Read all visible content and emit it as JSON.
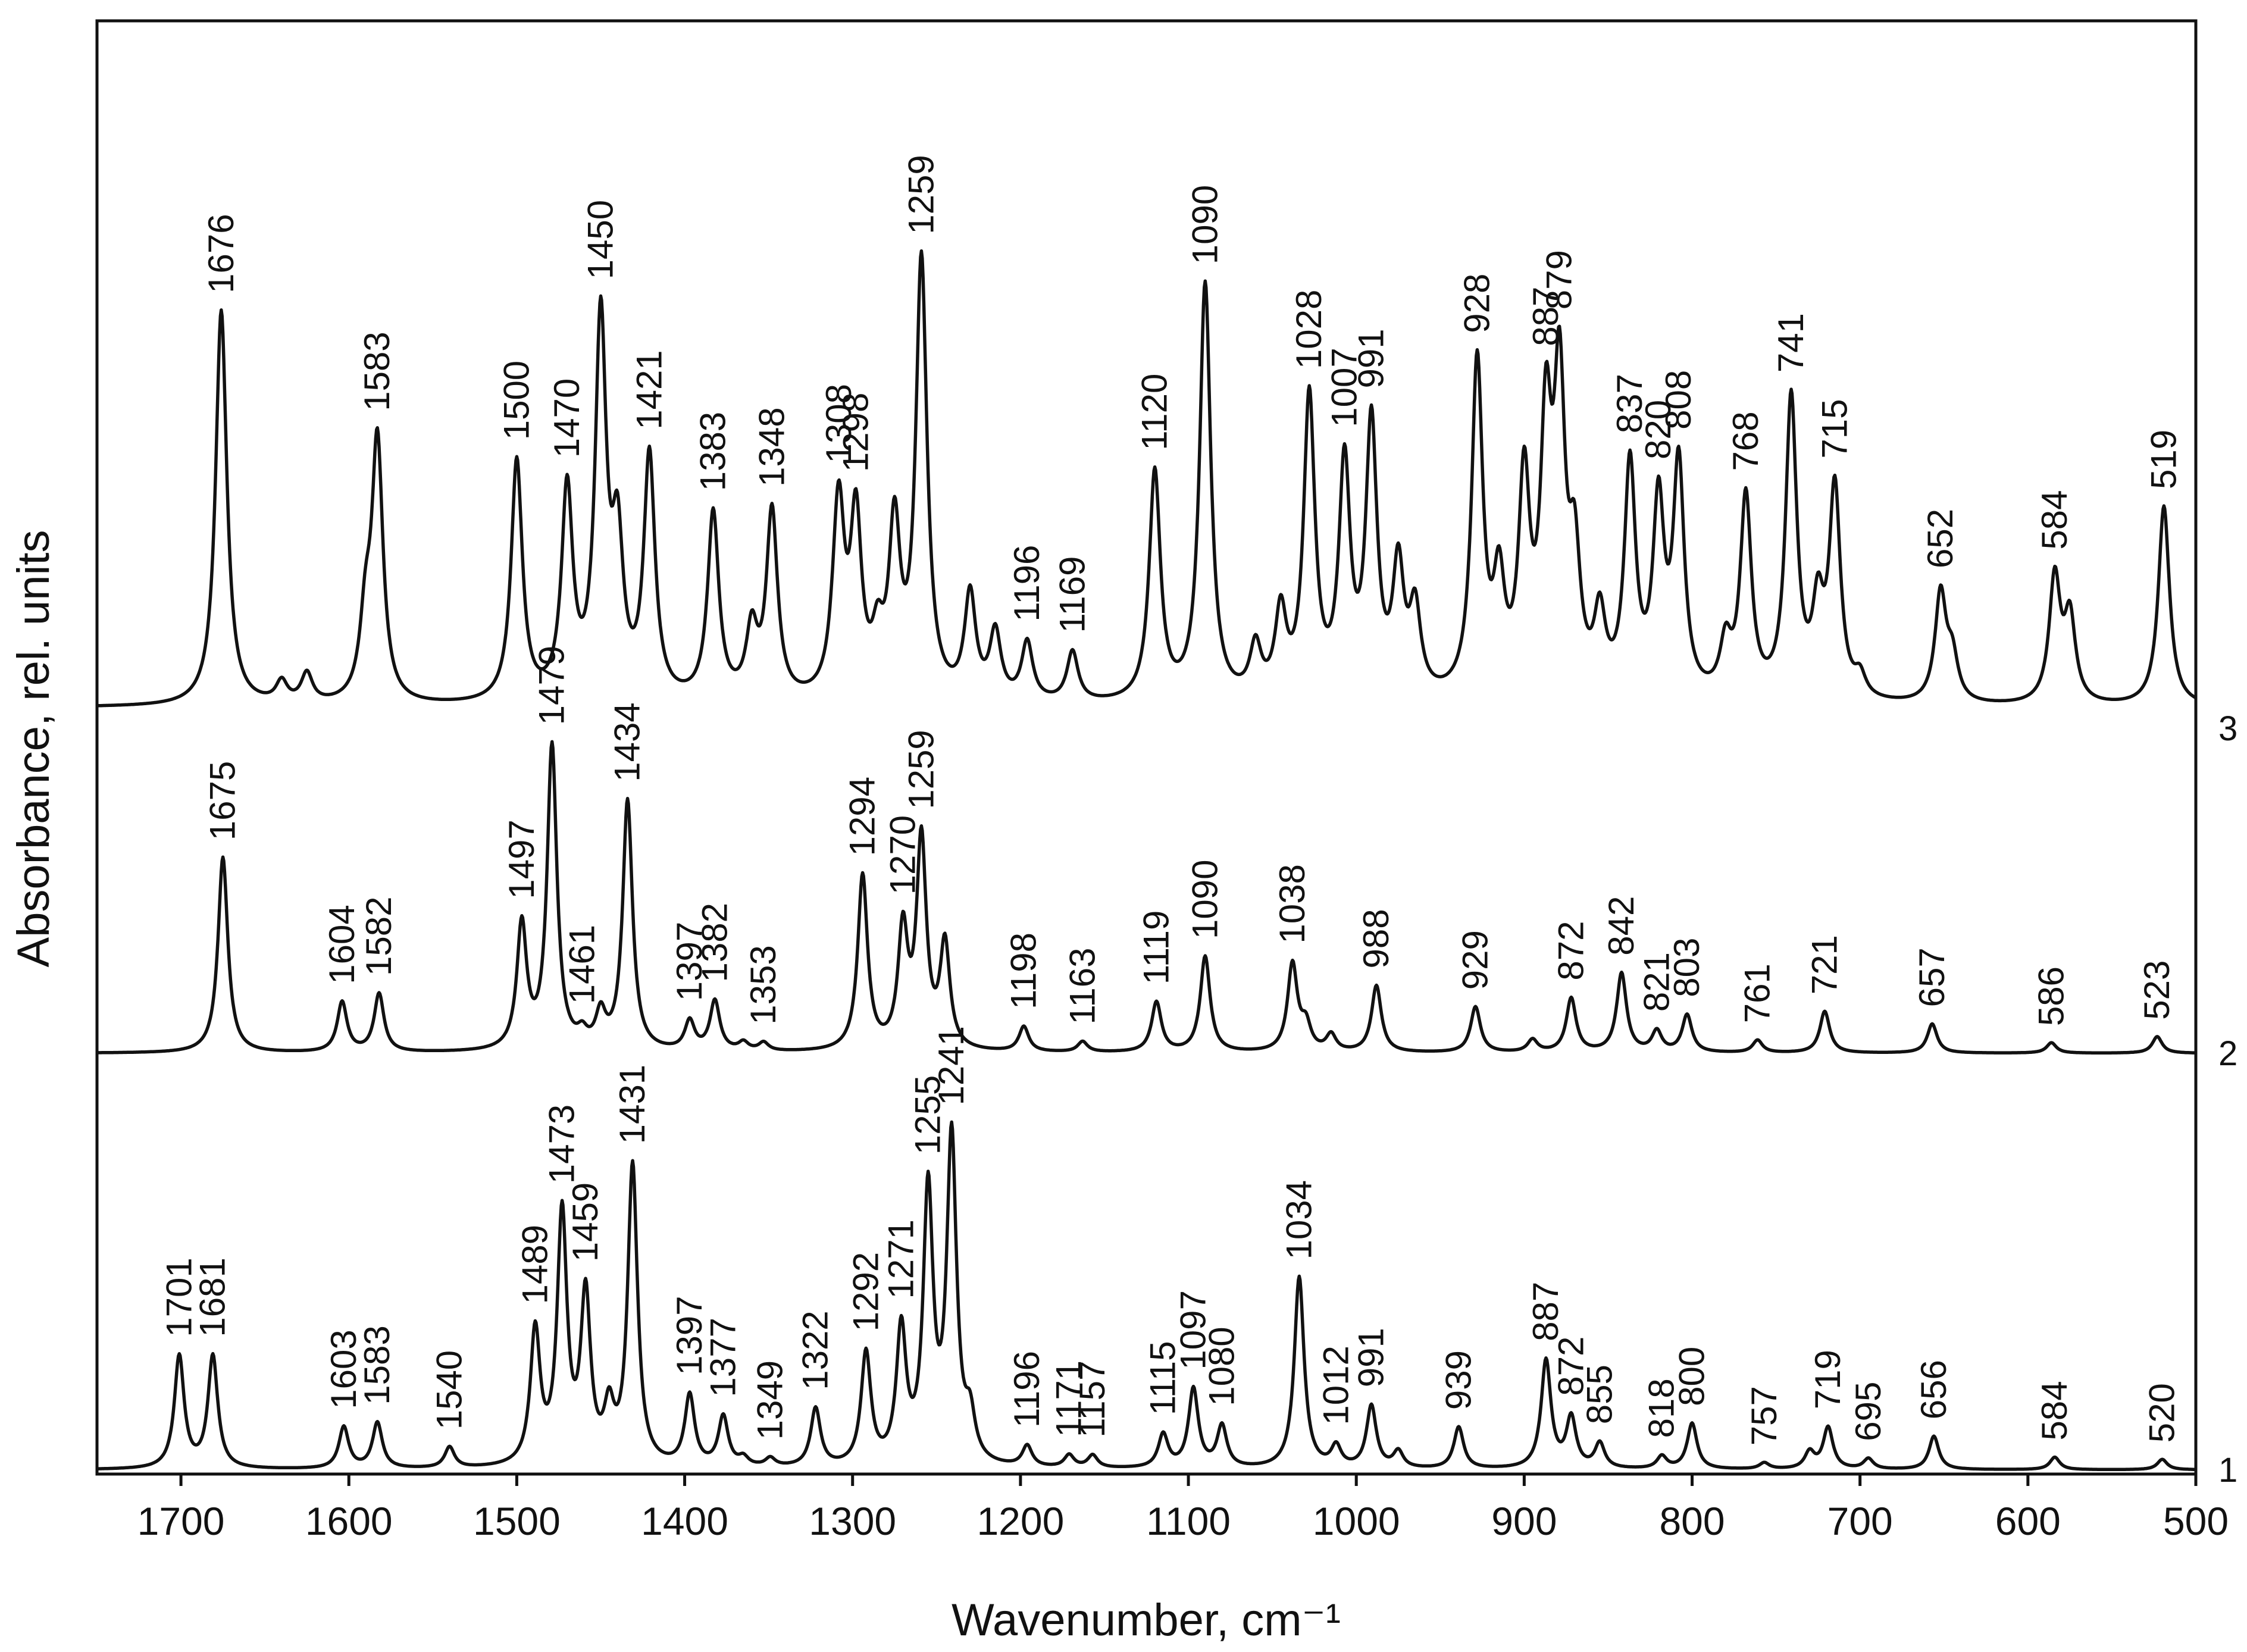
{
  "chart_data": {
    "type": "line",
    "title": "",
    "xlabel": "Wavenumber, cm⁻¹",
    "ylabel": "Absorbance, rel. units",
    "xlim": [
      1750,
      500
    ],
    "x_reversed": true,
    "y_ticks_shown": false,
    "grid": false,
    "x_ticks": [
      1700,
      1600,
      1500,
      1400,
      1300,
      1200,
      1100,
      1000,
      900,
      800,
      700,
      600,
      500
    ],
    "x_tick_labels": [
      "1700",
      "1600",
      "1500",
      "1400",
      "1300",
      "1200",
      "1100",
      "1000",
      "900",
      "800",
      "700",
      "600",
      "500"
    ],
    "series": [
      {
        "name": "3",
        "baseline_offset": 1.78,
        "baseline": 0.05,
        "width": 4,
        "shoulders": [
          {
            "x": 1590,
            "h": 0.18
          },
          {
            "x": 1640,
            "h": 0.05
          },
          {
            "x": 1625,
            "h": 0.07
          },
          {
            "x": 1285,
            "h": 0.12
          },
          {
            "x": 1275,
            "h": 0.4
          },
          {
            "x": 1230,
            "h": 0.25
          },
          {
            "x": 1215,
            "h": 0.16
          },
          {
            "x": 1440,
            "h": 0.35
          },
          {
            "x": 1360,
            "h": 0.16
          },
          {
            "x": 1060,
            "h": 0.12
          },
          {
            "x": 1045,
            "h": 0.2
          },
          {
            "x": 975,
            "h": 0.3
          },
          {
            "x": 965,
            "h": 0.2
          },
          {
            "x": 900,
            "h": 0.5
          },
          {
            "x": 915,
            "h": 0.25
          },
          {
            "x": 870,
            "h": 0.3
          },
          {
            "x": 855,
            "h": 0.18
          },
          {
            "x": 780,
            "h": 0.12
          },
          {
            "x": 725,
            "h": 0.2
          },
          {
            "x": 700,
            "h": 0.05
          },
          {
            "x": 645,
            "h": 0.1
          },
          {
            "x": 575,
            "h": 0.2
          },
          {
            "x": 1310,
            "h": 0.1
          }
        ],
        "peaks": [
          {
            "x": 1676,
            "h": 0.95,
            "label": "1676"
          },
          {
            "x": 1583,
            "h": 0.62,
            "label": "1583"
          },
          {
            "x": 1500,
            "h": 0.58,
            "label": "1500"
          },
          {
            "x": 1470,
            "h": 0.5,
            "label": "1470"
          },
          {
            "x": 1450,
            "h": 0.9,
            "label": "1450"
          },
          {
            "x": 1421,
            "h": 0.58,
            "label": "1421"
          },
          {
            "x": 1383,
            "h": 0.45,
            "label": "1383"
          },
          {
            "x": 1348,
            "h": 0.45,
            "label": "1348"
          },
          {
            "x": 1308,
            "h": 0.38,
            "label": "1308"
          },
          {
            "x": 1298,
            "h": 0.42,
            "label": "1298"
          },
          {
            "x": 1259,
            "h": 1.05,
            "label": "1259"
          },
          {
            "x": 1196,
            "h": 0.14,
            "label": "1196"
          },
          {
            "x": 1169,
            "h": 0.12,
            "label": "1169"
          },
          {
            "x": 1120,
            "h": 0.55,
            "label": "1120"
          },
          {
            "x": 1090,
            "h": 1.0,
            "label": "1090"
          },
          {
            "x": 1028,
            "h": 0.72,
            "label": "1028"
          },
          {
            "x": 1007,
            "h": 0.55,
            "label": "1007"
          },
          {
            "x": 991,
            "h": 0.65,
            "label": "991"
          },
          {
            "x": 928,
            "h": 0.8,
            "label": "928"
          },
          {
            "x": 887,
            "h": 0.6,
            "label": "887"
          },
          {
            "x": 879,
            "h": 0.7,
            "label": "879"
          },
          {
            "x": 837,
            "h": 0.55,
            "label": "837"
          },
          {
            "x": 820,
            "h": 0.45,
            "label": "820"
          },
          {
            "x": 808,
            "h": 0.55,
            "label": "808"
          },
          {
            "x": 768,
            "h": 0.48,
            "label": "768"
          },
          {
            "x": 741,
            "h": 0.72,
            "label": "741"
          },
          {
            "x": 715,
            "h": 0.5,
            "label": "715"
          },
          {
            "x": 652,
            "h": 0.26,
            "label": "652"
          },
          {
            "x": 584,
            "h": 0.3,
            "label": "584"
          },
          {
            "x": 519,
            "h": 0.48,
            "label": "519"
          }
        ]
      },
      {
        "name": "2",
        "baseline_offset": 1.0,
        "baseline": 0,
        "width": 3.5,
        "shoulders": [
          {
            "x": 1497,
            "h": 0.18
          },
          {
            "x": 1450,
            "h": 0.08
          },
          {
            "x": 1365,
            "h": 0.02
          },
          {
            "x": 1245,
            "h": 0.25
          },
          {
            "x": 1090,
            "h": 0.0
          },
          {
            "x": 1030,
            "h": 0.06
          },
          {
            "x": 1015,
            "h": 0.04
          },
          {
            "x": 895,
            "h": 0.03
          }
        ],
        "peaks": [
          {
            "x": 1675,
            "h": 0.47,
            "label": "1675"
          },
          {
            "x": 1604,
            "h": 0.12,
            "label": "1604"
          },
          {
            "x": 1582,
            "h": 0.14,
            "label": "1582"
          },
          {
            "x": 1497,
            "h": 0.12,
            "label": "1497"
          },
          {
            "x": 1479,
            "h": 0.73,
            "label": "1479"
          },
          {
            "x": 1461,
            "h": 0.03,
            "label": "1461"
          },
          {
            "x": 1434,
            "h": 0.6,
            "label": "1434"
          },
          {
            "x": 1397,
            "h": 0.07,
            "label": "1397"
          },
          {
            "x": 1382,
            "h": 0.12,
            "label": "1382"
          },
          {
            "x": 1353,
            "h": 0.02,
            "label": "1353"
          },
          {
            "x": 1294,
            "h": 0.42,
            "label": "1294"
          },
          {
            "x": 1270,
            "h": 0.28,
            "label": "1270"
          },
          {
            "x": 1259,
            "h": 0.5,
            "label": "1259"
          },
          {
            "x": 1198,
            "h": 0.06,
            "label": "1198"
          },
          {
            "x": 1163,
            "h": 0.025,
            "label": "1163"
          },
          {
            "x": 1119,
            "h": 0.12,
            "label": "1119"
          },
          {
            "x": 1090,
            "h": 0.23,
            "label": "1090"
          },
          {
            "x": 1038,
            "h": 0.21,
            "label": "1038"
          },
          {
            "x": 988,
            "h": 0.16,
            "label": "988"
          },
          {
            "x": 929,
            "h": 0.11,
            "label": "929"
          },
          {
            "x": 872,
            "h": 0.13,
            "label": "872"
          },
          {
            "x": 842,
            "h": 0.19,
            "label": "842"
          },
          {
            "x": 821,
            "h": 0.05,
            "label": "821"
          },
          {
            "x": 803,
            "h": 0.09,
            "label": "803"
          },
          {
            "x": 761,
            "h": 0.03,
            "label": "761"
          },
          {
            "x": 721,
            "h": 0.1,
            "label": "721"
          },
          {
            "x": 657,
            "h": 0.07,
            "label": "657"
          },
          {
            "x": 586,
            "h": 0.025,
            "label": "586"
          },
          {
            "x": 523,
            "h": 0.04,
            "label": "523"
          }
        ]
      },
      {
        "name": "1",
        "baseline_offset": 0.0,
        "baseline": 0,
        "width": 3.5,
        "shoulders": [
          {
            "x": 1459,
            "h": 0.3
          },
          {
            "x": 1445,
            "h": 0.12
          },
          {
            "x": 1365,
            "h": 0.02
          },
          {
            "x": 1255,
            "h": 0.55
          },
          {
            "x": 1230,
            "h": 0.1
          },
          {
            "x": 975,
            "h": 0.04
          },
          {
            "x": 730,
            "h": 0.04
          }
        ],
        "peaks": [
          {
            "x": 1701,
            "h": 0.27,
            "label": "1701"
          },
          {
            "x": 1681,
            "h": 0.27,
            "label": "1681"
          },
          {
            "x": 1603,
            "h": 0.1,
            "label": "1603"
          },
          {
            "x": 1583,
            "h": 0.11,
            "label": "1583"
          },
          {
            "x": 1540,
            "h": 0.05,
            "label": "1540"
          },
          {
            "x": 1489,
            "h": 0.32,
            "label": "1489"
          },
          {
            "x": 1473,
            "h": 0.6,
            "label": "1473"
          },
          {
            "x": 1459,
            "h": 0.1,
            "label": "1459"
          },
          {
            "x": 1431,
            "h": 0.72,
            "label": "1431"
          },
          {
            "x": 1397,
            "h": 0.17,
            "label": "1397"
          },
          {
            "x": 1377,
            "h": 0.12,
            "label": "1377"
          },
          {
            "x": 1349,
            "h": 0.02,
            "label": "1349"
          },
          {
            "x": 1322,
            "h": 0.14,
            "label": "1322"
          },
          {
            "x": 1292,
            "h": 0.27,
            "label": "1292"
          },
          {
            "x": 1271,
            "h": 0.32,
            "label": "1271"
          },
          {
            "x": 1255,
            "h": 0.1,
            "label": "1255"
          },
          {
            "x": 1241,
            "h": 0.78,
            "label": "1241"
          },
          {
            "x": 1196,
            "h": 0.05,
            "label": "1196"
          },
          {
            "x": 1171,
            "h": 0.03,
            "label": "1171"
          },
          {
            "x": 1157,
            "h": 0.03,
            "label": "1157"
          },
          {
            "x": 1115,
            "h": 0.08,
            "label": "1115"
          },
          {
            "x": 1097,
            "h": 0.19,
            "label": "1097"
          },
          {
            "x": 1080,
            "h": 0.1,
            "label": "1080"
          },
          {
            "x": 1034,
            "h": 0.46,
            "label": "1034"
          },
          {
            "x": 1012,
            "h": 0.05,
            "label": "1012"
          },
          {
            "x": 991,
            "h": 0.15,
            "label": "991"
          },
          {
            "x": 939,
            "h": 0.1,
            "label": "939"
          },
          {
            "x": 887,
            "h": 0.26,
            "label": "887"
          },
          {
            "x": 872,
            "h": 0.12,
            "label": "872"
          },
          {
            "x": 855,
            "h": 0.06,
            "label": "855"
          },
          {
            "x": 818,
            "h": 0.03,
            "label": "818"
          },
          {
            "x": 800,
            "h": 0.11,
            "label": "800"
          },
          {
            "x": 757,
            "h": 0.015,
            "label": "757"
          },
          {
            "x": 719,
            "h": 0.1,
            "label": "719"
          },
          {
            "x": 695,
            "h": 0.025,
            "label": "695"
          },
          {
            "x": 656,
            "h": 0.08,
            "label": "656"
          },
          {
            "x": 584,
            "h": 0.03,
            "label": "584"
          },
          {
            "x": 520,
            "h": 0.025,
            "label": "520"
          }
        ]
      }
    ]
  }
}
